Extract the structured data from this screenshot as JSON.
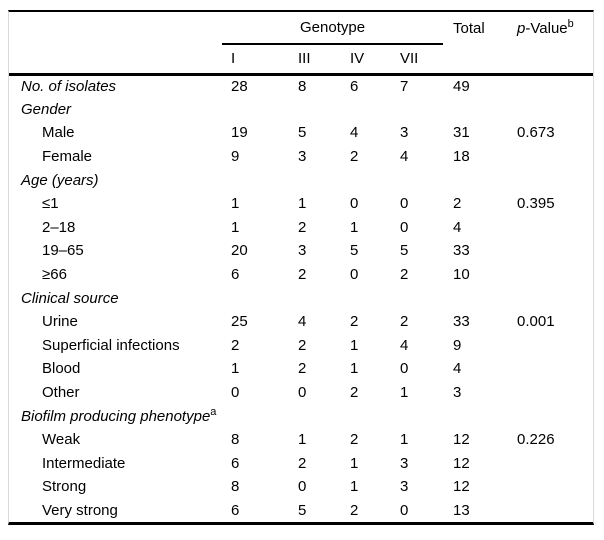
{
  "table": {
    "header": {
      "group_label": "Genotype",
      "genotype_columns": [
        "I",
        "III",
        "IV",
        "VII"
      ],
      "total_label": "Total",
      "pvalue_prefix": "p",
      "pvalue_rest": "-Value",
      "pvalue_sup": "b"
    },
    "columns_order": [
      "I",
      "III",
      "IV",
      "VII",
      "Total",
      "p-Value"
    ],
    "rows": [
      {
        "label": "No. of isolates",
        "italic": true,
        "indent": 0,
        "section": false,
        "values": [
          "28",
          "8",
          "6",
          "7",
          "49",
          ""
        ]
      },
      {
        "label": "Gender",
        "italic": true,
        "indent": 0,
        "section": true,
        "values": [
          "",
          "",
          "",
          "",
          "",
          ""
        ]
      },
      {
        "label": "Male",
        "italic": false,
        "indent": 1,
        "section": false,
        "values": [
          "19",
          "5",
          "4",
          "3",
          "31",
          "0.673"
        ]
      },
      {
        "label": "Female",
        "italic": false,
        "indent": 1,
        "section": false,
        "values": [
          "9",
          "3",
          "2",
          "4",
          "18",
          ""
        ]
      },
      {
        "label": "Age (years)",
        "italic": true,
        "indent": 0,
        "section": true,
        "values": [
          "",
          "",
          "",
          "",
          "",
          ""
        ]
      },
      {
        "label": "≤1",
        "italic": false,
        "indent": 1,
        "section": false,
        "values": [
          "1",
          "1",
          "0",
          "0",
          "2",
          "0.395"
        ]
      },
      {
        "label": "2–18",
        "italic": false,
        "indent": 1,
        "section": false,
        "values": [
          "1",
          "2",
          "1",
          "0",
          "4",
          ""
        ]
      },
      {
        "label": "19–65",
        "italic": false,
        "indent": 1,
        "section": false,
        "values": [
          "20",
          "3",
          "5",
          "5",
          "33",
          ""
        ]
      },
      {
        "label": "≥66",
        "italic": false,
        "indent": 1,
        "section": false,
        "values": [
          "6",
          "2",
          "0",
          "2",
          "10",
          ""
        ]
      },
      {
        "label": "Clinical source",
        "italic": true,
        "indent": 0,
        "section": true,
        "values": [
          "",
          "",
          "",
          "",
          "",
          ""
        ]
      },
      {
        "label": "Urine",
        "italic": false,
        "indent": 1,
        "section": false,
        "values": [
          "25",
          "4",
          "2",
          "2",
          "33",
          "0.001"
        ]
      },
      {
        "label": "Superficial infections",
        "italic": false,
        "indent": 1,
        "section": false,
        "values": [
          "2",
          "2",
          "1",
          "4",
          "9",
          ""
        ]
      },
      {
        "label": "Blood",
        "italic": false,
        "indent": 1,
        "section": false,
        "values": [
          "1",
          "2",
          "1",
          "0",
          "4",
          ""
        ]
      },
      {
        "label": "Other",
        "italic": false,
        "indent": 1,
        "section": false,
        "values": [
          "0",
          "0",
          "2",
          "1",
          "3",
          ""
        ]
      },
      {
        "label": "Biofilm producing phenotype",
        "sup": "a",
        "italic": true,
        "indent": 0,
        "section": true,
        "values": [
          "",
          "",
          "",
          "",
          "",
          ""
        ]
      },
      {
        "label": "Weak",
        "italic": false,
        "indent": 1,
        "section": false,
        "values": [
          "8",
          "1",
          "2",
          "1",
          "12",
          "0.226"
        ]
      },
      {
        "label": "Intermediate",
        "italic": false,
        "indent": 1,
        "section": false,
        "values": [
          "6",
          "2",
          "1",
          "3",
          "12",
          ""
        ]
      },
      {
        "label": "Strong",
        "italic": false,
        "indent": 1,
        "section": false,
        "values": [
          "8",
          "0",
          "1",
          "3",
          "12",
          ""
        ]
      },
      {
        "label": "Very strong",
        "italic": false,
        "indent": 1,
        "section": false,
        "values": [
          "6",
          "5",
          "2",
          "0",
          "13",
          ""
        ]
      }
    ],
    "colors": {
      "rule": "#000000",
      "text": "#000000",
      "frame_border": "#d9d9d9",
      "background": "#ffffff"
    }
  }
}
